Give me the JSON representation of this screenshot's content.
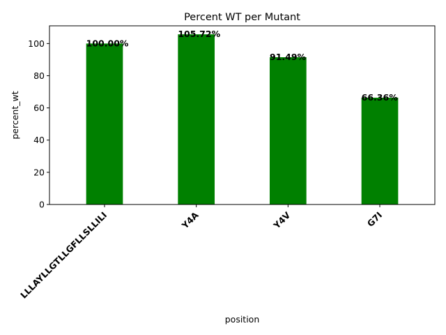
{
  "chart_data": {
    "type": "bar",
    "title": "Percent WT per Mutant",
    "xlabel": "position",
    "ylabel": "percent_wt",
    "categories": [
      "LLLAYLLGTLLGFLLSLLILI",
      "Y4A",
      "Y4V",
      "G7I"
    ],
    "values": [
      100.0,
      105.72,
      91.49,
      66.36
    ],
    "data_labels": [
      "100.00%",
      "105.72%",
      "91.49%",
      "66.36%"
    ],
    "ylim": [
      0,
      111
    ],
    "yticks": [
      0,
      20,
      40,
      60,
      80,
      100
    ],
    "bar_color": "#008000",
    "grid": false,
    "legend": "none"
  }
}
